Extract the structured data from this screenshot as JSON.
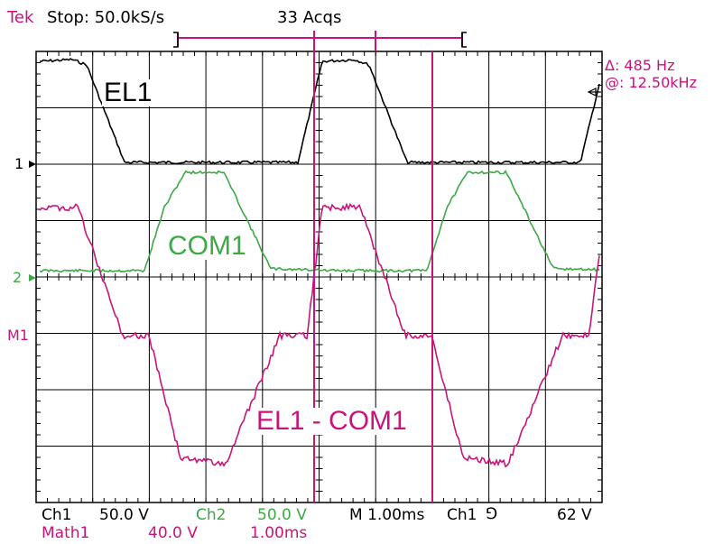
{
  "header": {
    "brand": "Tek",
    "status": "Stop: 50.0kS/s",
    "acqs": "33 Acqs"
  },
  "readouts": {
    "delta": "Δ: 485 Hz",
    "at": "@: 12.50kHz"
  },
  "markers": {
    "ch1": "1",
    "ch2": "2",
    "math": "M1"
  },
  "labels": {
    "el1": "EL1",
    "com1": "COM1",
    "diff": "EL1 - COM1"
  },
  "footer": {
    "ch1_label": "Ch1",
    "ch1_scale": "50.0 V",
    "ch2_label": "Ch2",
    "ch2_scale": "50.0 V",
    "timebase": "M 1.00ms",
    "trig_ch": "Ch1",
    "trig_level": "62 V",
    "math_label": "Math1",
    "math_scale": "40.0 V",
    "math_time": "1.00ms"
  },
  "colors": {
    "magenta": "#c8147a",
    "green": "#3ca846",
    "black": "#000000"
  },
  "chart_data": {
    "type": "line",
    "series": [
      {
        "name": "EL1"
      },
      {
        "name": "COM1"
      },
      {
        "name": "EL1 - COM1"
      }
    ],
    "x_divisions": 10,
    "y_divisions": 8,
    "grid": true
  }
}
